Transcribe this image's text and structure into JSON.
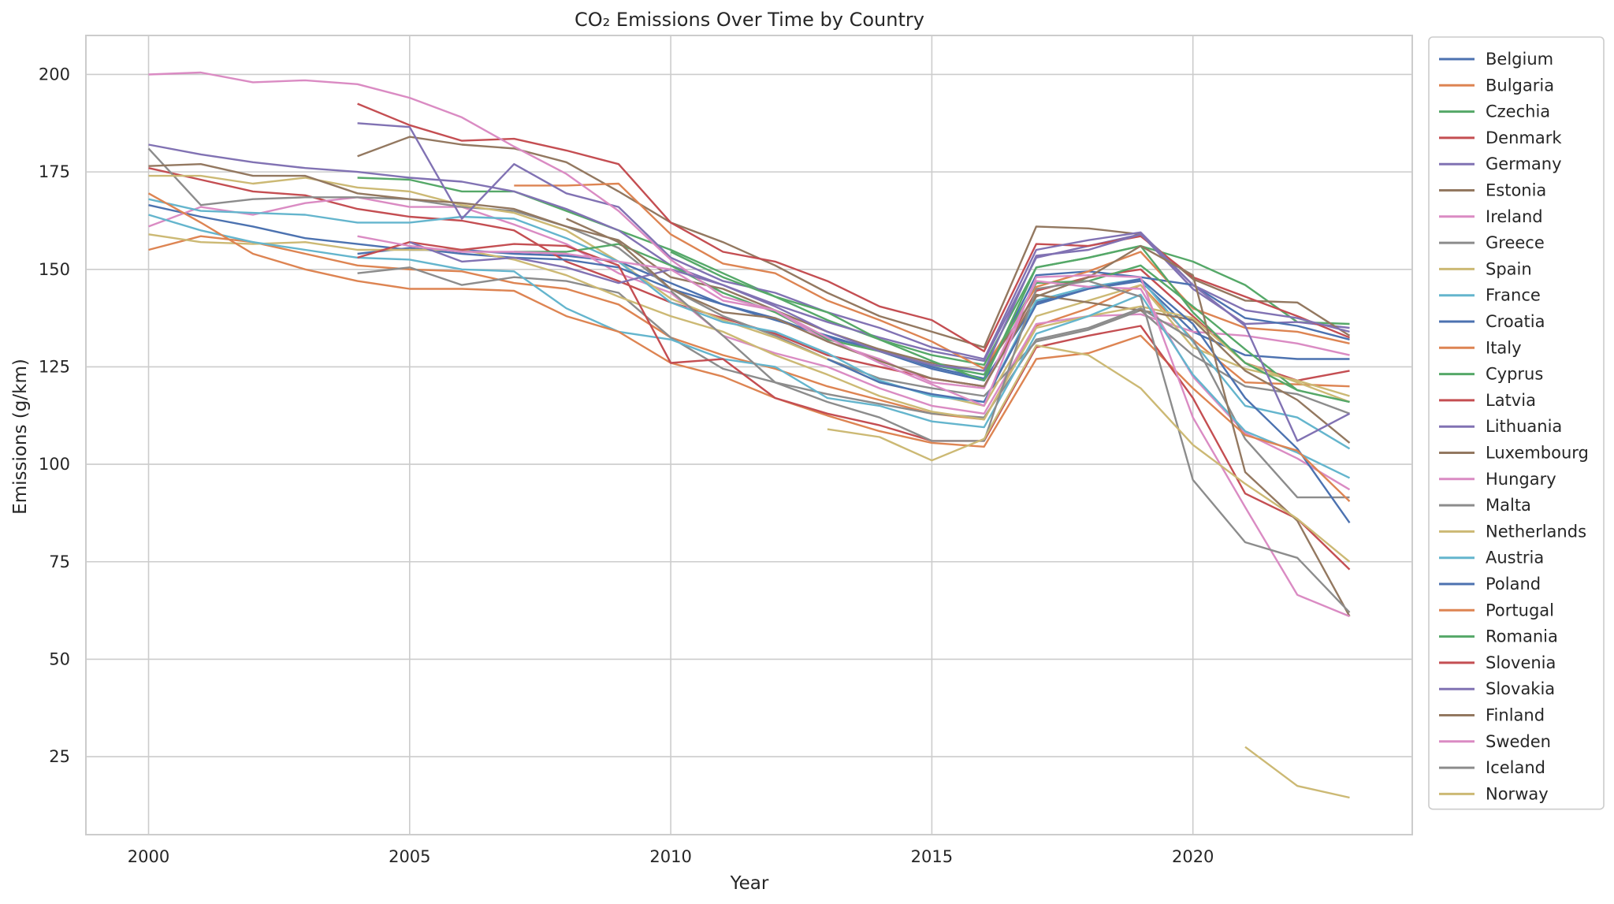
{
  "chart_data": {
    "type": "line",
    "title": "CO₂ Emissions Over Time by Country",
    "xlabel": "Year",
    "ylabel": "Emissions (g/km)",
    "xlim": [
      1998.8,
      2024.2
    ],
    "ylim": [
      5,
      210
    ],
    "xticks": [
      2000,
      2005,
      2010,
      2015,
      2020
    ],
    "yticks": [
      25,
      50,
      75,
      100,
      125,
      150,
      175,
      200
    ],
    "grid": true,
    "legend_position": "outside-right",
    "x": [
      2000,
      2001,
      2002,
      2003,
      2004,
      2005,
      2006,
      2007,
      2008,
      2009,
      2010,
      2011,
      2012,
      2013,
      2014,
      2015,
      2016,
      2017,
      2018,
      2019,
      2020,
      2021,
      2022,
      2023
    ],
    "series": [
      {
        "name": "Belgium",
        "color": "#4c72b0",
        "values": [
          166.5,
          163.5,
          161,
          158,
          156.5,
          155,
          155,
          154,
          153.5,
          152,
          146.5,
          141,
          137,
          133,
          129,
          124.5,
          121.5,
          141.5,
          145,
          147,
          134,
          128,
          127,
          127
        ]
      },
      {
        "name": "Bulgaria",
        "color": "#dd8452",
        "values": [
          155,
          158.5,
          157,
          154,
          151,
          150,
          149.5,
          146.5,
          145,
          141,
          132.5,
          128,
          124.5,
          120,
          116.5,
          113,
          111.5,
          135.5,
          140,
          146,
          132,
          121,
          120.5,
          120
        ]
      },
      {
        "name": "Czechia",
        "color": "#55a868",
        "values": [
          null,
          null,
          null,
          null,
          173.5,
          173,
          170,
          170,
          165,
          160,
          155,
          149,
          143,
          137,
          132,
          128,
          125.5,
          150.5,
          153,
          156,
          152,
          146,
          136.5,
          136
        ]
      },
      {
        "name": "Denmark",
        "color": "#c44e52",
        "values": [
          176,
          173,
          170,
          169,
          165.5,
          163.5,
          162.5,
          160,
          152,
          147,
          141.5,
          137.5,
          133.5,
          128,
          125,
          122,
          120,
          144.5,
          148,
          150,
          138,
          126,
          121.5,
          124
        ]
      },
      {
        "name": "Germany",
        "color": "#8172b3",
        "values": [
          182,
          179.5,
          177.5,
          176,
          175,
          173.5,
          172.5,
          170,
          165.5,
          160,
          151,
          146,
          141,
          136.5,
          132.5,
          129,
          126.5,
          153,
          156,
          159,
          145,
          136,
          136.5,
          135
        ]
      },
      {
        "name": "Estonia",
        "color": "#937860",
        "values": [
          null,
          null,
          null,
          null,
          179,
          184,
          182,
          181,
          177.5,
          170,
          162,
          157,
          151,
          144,
          138,
          134,
          130,
          161,
          160.5,
          159,
          147.5,
          142,
          141.5,
          133
        ]
      },
      {
        "name": "Ireland",
        "color": "#da8bc3",
        "values": [
          161,
          166,
          164,
          167,
          168.5,
          166,
          166,
          161.5,
          156.5,
          149,
          144,
          133,
          128.5,
          125,
          119.5,
          115,
          113,
          136,
          138,
          138.5,
          134,
          133,
          131,
          128
        ]
      },
      {
        "name": "Greece",
        "color": "#8c8c8c",
        "values": [
          181,
          166.5,
          168,
          168.5,
          168.5,
          168,
          166,
          165,
          161,
          155.5,
          145,
          138,
          133,
          127,
          122,
          119.5,
          117.5,
          131.5,
          134.5,
          139.5,
          128,
          120,
          118,
          113
        ]
      },
      {
        "name": "Spain",
        "color": "#ccb974",
        "values": [
          174,
          174,
          172,
          173.5,
          171,
          170,
          166.5,
          164.5,
          160,
          152,
          142.5,
          137,
          132.5,
          127,
          121,
          118,
          115,
          138,
          142,
          146,
          130,
          124.5,
          121.5,
          117.5
        ]
      },
      {
        "name": "France",
        "color": "#64b5cd",
        "values": [
          168,
          165,
          164.5,
          164,
          162,
          162,
          163.5,
          163,
          158,
          152,
          141.5,
          136.5,
          134,
          128.5,
          121.5,
          117.5,
          116,
          142,
          145.5,
          147.5,
          131.5,
          115,
          112,
          104
        ]
      },
      {
        "name": "Croatia",
        "color": "#4c72b0",
        "values": [
          null,
          null,
          null,
          null,
          154,
          155.5,
          154,
          153,
          152.5,
          150.5,
          145,
          141,
          137.5,
          132.5,
          129.5,
          125,
          122,
          148.5,
          149.5,
          148,
          146,
          137.5,
          135.5,
          132
        ]
      },
      {
        "name": "Italy",
        "color": "#dd8452",
        "values": [
          null,
          null,
          null,
          null,
          null,
          null,
          null,
          171.5,
          171.5,
          172,
          159,
          151.5,
          149,
          142,
          137,
          131.5,
          124.5,
          145.5,
          149.5,
          154.5,
          140,
          135,
          134,
          131
        ]
      },
      {
        "name": "Cyprus",
        "color": "#55a868",
        "values": [
          null,
          null,
          null,
          null,
          null,
          null,
          null,
          154.5,
          154.5,
          156.5,
          151,
          144,
          139,
          132,
          129,
          125.5,
          123,
          146.5,
          147,
          151,
          140.5,
          129.5,
          119,
          116
        ]
      },
      {
        "name": "Latvia",
        "color": "#c44e52",
        "values": [
          null,
          null,
          null,
          null,
          192.5,
          187,
          183,
          183.5,
          180.5,
          177,
          162,
          154.5,
          152,
          147,
          140.5,
          137,
          129,
          156.5,
          156,
          158.5,
          148,
          143,
          138,
          132.5
        ]
      },
      {
        "name": "Lithuania",
        "color": "#8172b3",
        "values": [
          null,
          null,
          null,
          null,
          187.5,
          186.5,
          163,
          177,
          169.5,
          166,
          153,
          147,
          144,
          139,
          135,
          130,
          127,
          155,
          157.5,
          159.5,
          146,
          139.5,
          137.5,
          134
        ]
      },
      {
        "name": "Luxembourg",
        "color": "#937860",
        "values": [
          176.5,
          177,
          174,
          174,
          169.5,
          168,
          167,
          165.5,
          161,
          157.5,
          148,
          145,
          139.5,
          134,
          129.5,
          126,
          124,
          143.5,
          141.5,
          139.5,
          137,
          124,
          116.5,
          105.5
        ]
      },
      {
        "name": "Hungary",
        "color": "#da8bc3",
        "values": [
          200,
          200.5,
          198,
          198.5,
          197.5,
          194,
          189,
          181.5,
          174.5,
          165,
          152.5,
          143,
          139.5,
          131.5,
          127,
          121,
          119.5,
          147,
          145.5,
          145,
          122.5,
          108,
          101.5,
          93.5
        ]
      },
      {
        "name": "Malta",
        "color": "#8c8c8c",
        "values": [
          null,
          null,
          null,
          null,
          149,
          150.5,
          146,
          148,
          147,
          144,
          132.5,
          124.5,
          121,
          118,
          115.5,
          113,
          112,
          132,
          135,
          140,
          132,
          106.5,
          91.5,
          91.5
        ]
      },
      {
        "name": "Netherlands",
        "color": "#ccb974",
        "values": [
          159,
          157,
          156.5,
          157,
          155,
          155,
          155,
          152.5,
          148.5,
          143,
          138,
          134,
          128,
          123,
          117.5,
          113.5,
          111.5,
          135,
          138,
          140.5,
          137.5,
          126,
          121,
          116
        ]
      },
      {
        "name": "Austria",
        "color": "#64b5cd",
        "values": [
          164,
          160,
          157,
          155,
          153,
          152.5,
          150,
          149.5,
          140,
          134,
          132,
          127,
          125,
          117,
          115,
          111,
          109.5,
          133.5,
          138,
          143.5,
          123,
          108.5,
          103,
          96.5
        ]
      },
      {
        "name": "Poland",
        "color": "#4c72b0",
        "values": [
          null,
          null,
          null,
          null,
          null,
          null,
          null,
          null,
          null,
          null,
          null,
          null,
          null,
          127,
          121,
          118,
          116,
          141,
          145,
          147.5,
          136,
          117,
          104,
          85
        ]
      },
      {
        "name": "Portugal",
        "color": "#dd8452",
        "values": [
          169.5,
          162,
          154,
          150,
          147,
          145,
          145,
          144.5,
          138,
          134,
          126,
          122.5,
          117,
          112.5,
          108.5,
          105.5,
          104.5,
          127,
          128.5,
          133,
          119.5,
          107.5,
          103.5,
          90.5
        ]
      },
      {
        "name": "Romania",
        "color": "#55a868",
        "values": [
          null,
          null,
          null,
          null,
          null,
          null,
          null,
          null,
          null,
          null,
          154.5,
          148,
          143,
          139,
          132,
          126.5,
          121.5,
          150.5,
          153,
          156,
          139,
          126,
          119,
          116
        ]
      },
      {
        "name": "Slovenia",
        "color": "#c44e52",
        "values": [
          null,
          null,
          null,
          null,
          153,
          157,
          155,
          156.5,
          156,
          151,
          126,
          127,
          117,
          113,
          110,
          106,
          106,
          130,
          133,
          135.5,
          117,
          92.5,
          86,
          73
        ]
      },
      {
        "name": "Slovakia",
        "color": "#8172b3",
        "values": [
          null,
          null,
          null,
          null,
          null,
          157,
          152,
          153,
          150.5,
          146.5,
          150,
          146,
          140.5,
          134,
          129,
          125.5,
          124,
          153.5,
          155,
          159,
          146,
          135.5,
          106,
          113
        ]
      },
      {
        "name": "Finland",
        "color": "#937860",
        "values": [
          null,
          null,
          null,
          null,
          null,
          null,
          null,
          null,
          163,
          157,
          145,
          139,
          137.5,
          131.5,
          126.5,
          122,
          120,
          143,
          148,
          156,
          148.5,
          98,
          85.5,
          61
        ]
      },
      {
        "name": "Sweden",
        "color": "#da8bc3",
        "values": [
          null,
          null,
          null,
          null,
          158.5,
          156,
          154.5,
          154.5,
          154,
          152,
          150,
          142,
          139.5,
          132.5,
          126,
          120.5,
          115,
          148,
          148.5,
          148,
          112,
          89,
          66.5,
          61
        ]
      },
      {
        "name": "Iceland",
        "color": "#8c8c8c",
        "values": [
          null,
          null,
          null,
          null,
          null,
          null,
          null,
          null,
          null,
          null,
          144.5,
          133,
          121,
          116,
          112,
          106,
          106,
          145,
          147,
          143,
          96,
          80,
          76,
          62
        ]
      },
      {
        "name": "Norway",
        "color": "#ccb974",
        "values": [
          null,
          null,
          null,
          null,
          null,
          null,
          null,
          null,
          null,
          null,
          null,
          null,
          null,
          109,
          107,
          101,
          106.5,
          130.5,
          128,
          119.5,
          105,
          95,
          86,
          75
        ]
      },
      {
        "name": "",
        "color": "#ccb974",
        "values": [
          null,
          null,
          null,
          null,
          null,
          null,
          null,
          null,
          null,
          null,
          null,
          null,
          null,
          null,
          null,
          null,
          null,
          null,
          null,
          null,
          null,
          27.5,
          17.5,
          14.5
        ]
      }
    ]
  }
}
